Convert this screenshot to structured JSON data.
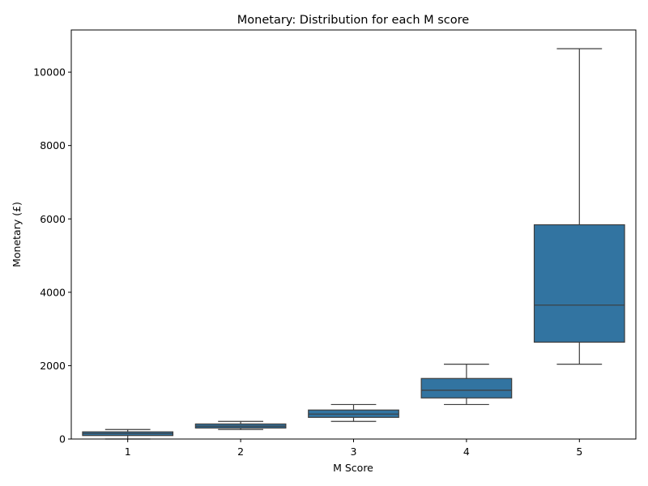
{
  "chart_data": {
    "type": "boxplot",
    "title": "Monetary: Distribution for each M score",
    "xlabel": "M Score",
    "ylabel": "Monetary (£)",
    "categories": [
      "1",
      "2",
      "3",
      "4",
      "5"
    ],
    "ylim": [
      0,
      11150
    ],
    "yticks": [
      0,
      2000,
      4000,
      6000,
      8000,
      10000
    ],
    "box_color": "#3274a1",
    "line_color": "#3d3d3d",
    "grid": false,
    "boxes": [
      {
        "category": "1",
        "whisker_low": 0,
        "q1": 95,
        "median": 150,
        "q3": 195,
        "whisker_high": 260
      },
      {
        "category": "2",
        "whisker_low": 260,
        "q1": 300,
        "median": 350,
        "q3": 410,
        "whisker_high": 480
      },
      {
        "category": "3",
        "whisker_low": 480,
        "q1": 590,
        "median": 680,
        "q3": 790,
        "whisker_high": 940
      },
      {
        "category": "4",
        "whisker_low": 940,
        "q1": 1120,
        "median": 1330,
        "q3": 1650,
        "whisker_high": 2040
      },
      {
        "category": "5",
        "whisker_low": 2040,
        "q1": 2640,
        "median": 3650,
        "q3": 5840,
        "whisker_high": 10640
      }
    ]
  }
}
